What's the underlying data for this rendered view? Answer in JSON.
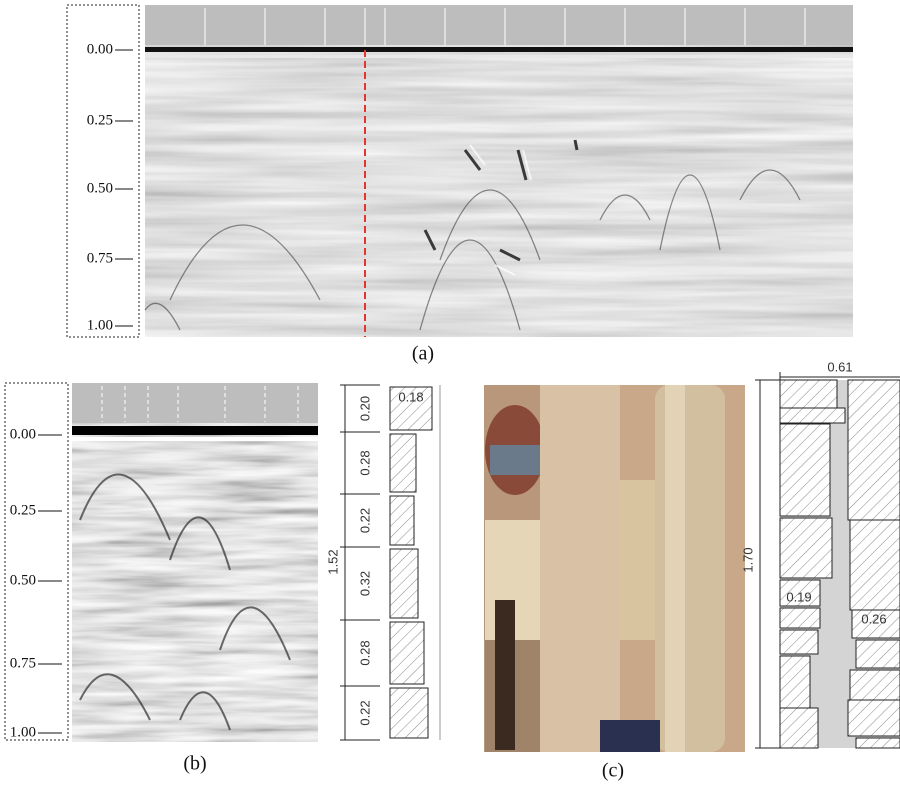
{
  "panel_a": {
    "depth_labels": [
      "0.00",
      "0.25",
      "0.50",
      "0.75",
      "1.00"
    ],
    "caption": "(a)"
  },
  "panel_b": {
    "depth_labels": [
      "0.00",
      "0.25",
      "0.50",
      "0.75",
      "1.00"
    ],
    "segment_labels": [
      "0.20",
      "0.28",
      "0.22",
      "0.32",
      "0.28",
      "0.22"
    ],
    "total_label": "1.52",
    "block_label": "0.18",
    "caption": "(b)"
  },
  "panel_c": {
    "width_label": "0.61",
    "height_label": "1.70",
    "left_label": "0.19",
    "right_label": "0.26",
    "caption": "(c)"
  }
}
